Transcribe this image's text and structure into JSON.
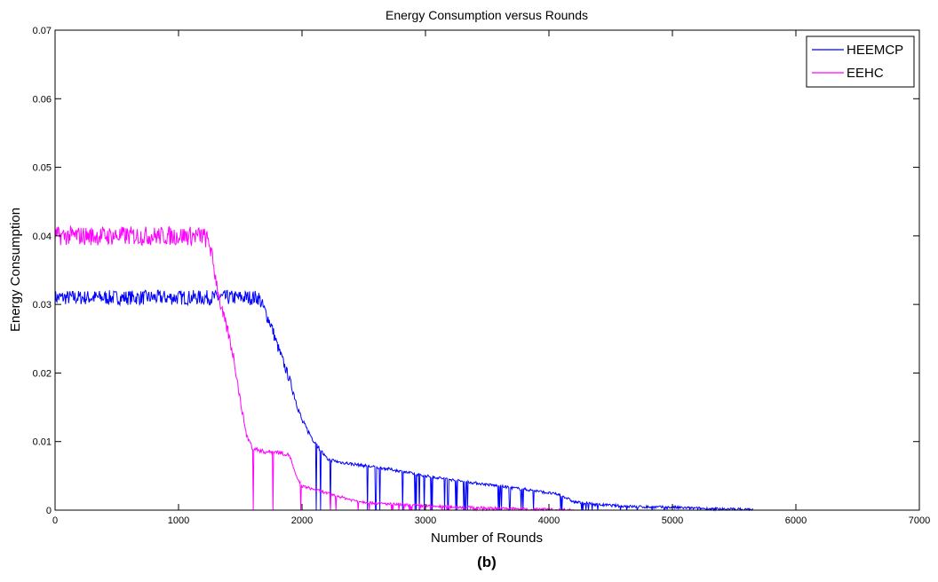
{
  "chart_data": {
    "type": "line",
    "title": "Energy Consumption versus Rounds",
    "xlabel": "Number of Rounds",
    "ylabel": "Energy Consumption",
    "caption": "(b)",
    "xlim": [
      0,
      7000
    ],
    "ylim": [
      0,
      0.07
    ],
    "xticks": [
      0,
      1000,
      2000,
      3000,
      4000,
      5000,
      6000,
      7000
    ],
    "yticks": [
      0,
      0.01,
      0.02,
      0.03,
      0.04,
      0.05,
      0.06,
      0.07
    ],
    "ytick_labels": [
      "0",
      "0.01",
      "0.02",
      "0.03",
      "0.04",
      "0.05",
      "0.06",
      "0.07"
    ],
    "grid": false,
    "legend_position": "top-right",
    "series": [
      {
        "name": "HEEMCP",
        "color": "#0000ff",
        "x": [
          0,
          200,
          400,
          600,
          800,
          1000,
          1200,
          1400,
          1500,
          1600,
          1650,
          1700,
          1750,
          1800,
          1900,
          2000,
          2100,
          2200,
          2300,
          2500,
          2700,
          3000,
          3300,
          3600,
          3900,
          4100,
          4200,
          4400,
          4700,
          5000,
          5300,
          5650
        ],
        "y": [
          0.031,
          0.031,
          0.031,
          0.031,
          0.031,
          0.031,
          0.031,
          0.031,
          0.031,
          0.031,
          0.031,
          0.029,
          0.027,
          0.024,
          0.019,
          0.013,
          0.01,
          0.0075,
          0.007,
          0.0065,
          0.006,
          0.005,
          0.0042,
          0.0035,
          0.0028,
          0.0022,
          0.0012,
          0.0008,
          0.0005,
          0.0004,
          0.0002,
          0.0001
        ]
      },
      {
        "name": "EEHC",
        "color": "#ff00ff",
        "x": [
          0,
          200,
          400,
          600,
          800,
          1000,
          1200,
          1250,
          1300,
          1350,
          1400,
          1450,
          1500,
          1550,
          1600,
          1700,
          1800,
          1900,
          1950,
          2000,
          2100,
          2200,
          2300,
          2400,
          2500,
          2600,
          3000,
          3500,
          4000,
          4200
        ],
        "y": [
          0.04,
          0.04,
          0.04,
          0.04,
          0.04,
          0.04,
          0.04,
          0.039,
          0.034,
          0.029,
          0.026,
          0.022,
          0.016,
          0.011,
          0.009,
          0.0085,
          0.0085,
          0.008,
          0.005,
          0.0035,
          0.003,
          0.0025,
          0.002,
          0.0015,
          0.0012,
          0.001,
          0.0006,
          0.0003,
          0.0001,
          0.0
        ]
      }
    ]
  }
}
